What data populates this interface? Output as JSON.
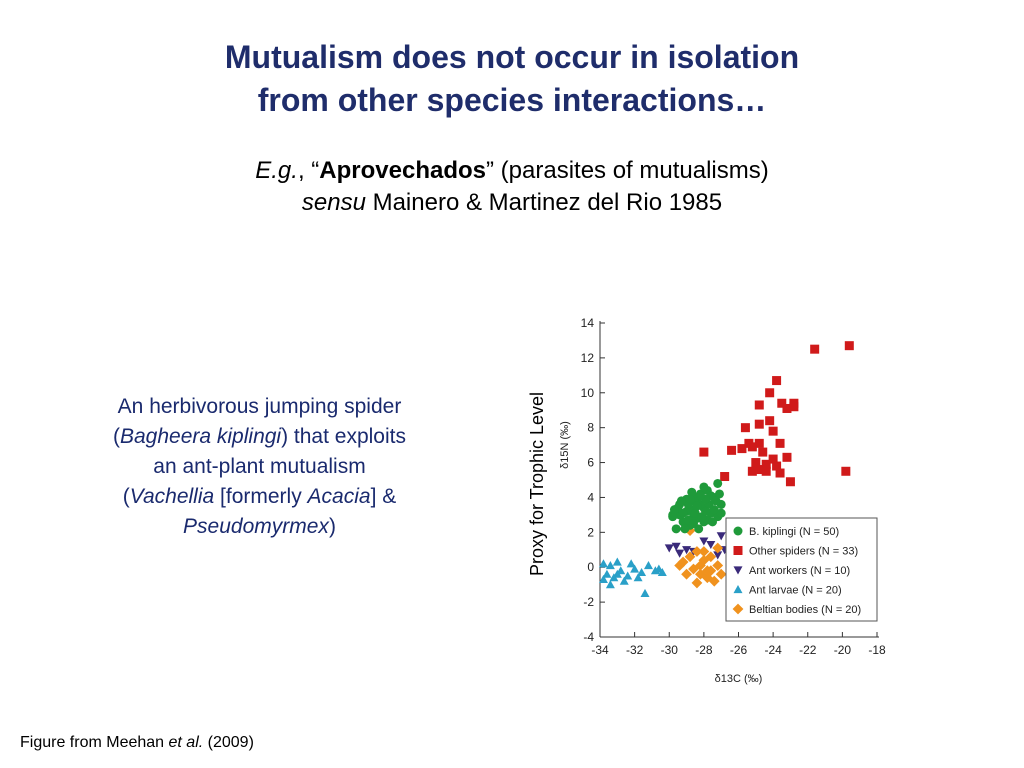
{
  "slide": {
    "title_line1": "Mutualism does not occur in isolation",
    "title_line2": "from other species interactions…",
    "sub1_eg": "E.g.",
    "sub1_sep": ", “",
    "sub1_bold": "Aprovechados",
    "sub1_rest": "” (parasites of mutualisms)",
    "sub2_italic": "sensu",
    "sub2_rest": " Mainero & Martinez del Rio 1985",
    "caption": {
      "l1": "An herbivorous jumping spider",
      "l2a": "(",
      "l2i": "Bagheera kiplingi",
      "l2b": ") that exploits",
      "l3": "an ant-plant mutualism",
      "l4a": "(",
      "l4i": "Vachellia",
      "l4b": " [formerly ",
      "l4i2": "Acacia",
      "l4c": "] &",
      "l5i": "Pseudomyrmex",
      "l5b": ")"
    },
    "footer_a": "Figure from Meehan ",
    "footer_i": "et al.",
    "footer_b": " (2009)",
    "proxy_label": "Proxy for Trophic Level"
  },
  "chart_data": {
    "type": "scatter",
    "xlabel": "δ13C (‰)",
    "ylabel": "δ15N (‰)",
    "xlim": [
      -34,
      -18
    ],
    "ylim": [
      -4,
      14
    ],
    "xticks": [
      -34,
      -32,
      -30,
      -28,
      -26,
      -24,
      -22,
      -20,
      -18
    ],
    "yticks": [
      -4,
      -2,
      0,
      2,
      4,
      6,
      8,
      10,
      12,
      14
    ],
    "legend_position": "bottom-right",
    "series": [
      {
        "name": "B. kiplingi (N = 50)",
        "marker": "circle",
        "color": "#1f9a3a",
        "points": [
          [
            -29.8,
            3.0
          ],
          [
            -29.4,
            3.6
          ],
          [
            -29.0,
            3.2
          ],
          [
            -28.6,
            3.8
          ],
          [
            -28.2,
            4.2
          ],
          [
            -27.8,
            4.4
          ],
          [
            -27.4,
            4.0
          ],
          [
            -27.0,
            3.6
          ],
          [
            -27.2,
            4.8
          ],
          [
            -28.0,
            3.4
          ],
          [
            -28.4,
            2.8
          ],
          [
            -28.8,
            2.4
          ],
          [
            -29.2,
            2.6
          ],
          [
            -29.6,
            2.2
          ],
          [
            -29.0,
            3.9
          ],
          [
            -28.4,
            4.0
          ],
          [
            -27.6,
            3.1
          ],
          [
            -27.2,
            2.9
          ],
          [
            -28.0,
            2.6
          ],
          [
            -28.8,
            3.3
          ],
          [
            -29.4,
            3.0
          ],
          [
            -28.2,
            3.6
          ],
          [
            -27.8,
            2.7
          ],
          [
            -27.6,
            4.1
          ],
          [
            -28.6,
            2.9
          ],
          [
            -29.8,
            2.9
          ],
          [
            -27.0,
            3.1
          ],
          [
            -28.0,
            4.6
          ],
          [
            -28.9,
            3.6
          ],
          [
            -29.5,
            3.4
          ],
          [
            -27.4,
            3.3
          ],
          [
            -28.3,
            2.2
          ],
          [
            -27.7,
            3.6
          ],
          [
            -28.7,
            4.3
          ],
          [
            -29.1,
            2.2
          ],
          [
            -27.3,
            3.8
          ],
          [
            -28.5,
            3.1
          ],
          [
            -29.3,
            3.8
          ],
          [
            -27.9,
            3.9
          ],
          [
            -28.1,
            2.9
          ],
          [
            -28.9,
            2.7
          ],
          [
            -27.5,
            2.6
          ],
          [
            -29.7,
            3.3
          ],
          [
            -28.4,
            3.5
          ],
          [
            -27.1,
            4.2
          ],
          [
            -28.6,
            2.5
          ],
          [
            -29.2,
            3.1
          ],
          [
            -27.9,
            3.2
          ],
          [
            -28.2,
            4.1
          ],
          [
            -28.8,
            3.9
          ]
        ]
      },
      {
        "name": "Other spiders (N = 33)",
        "marker": "square",
        "color": "#d01a1a",
        "points": [
          [
            -19.6,
            12.7
          ],
          [
            -21.6,
            12.5
          ],
          [
            -23.8,
            10.7
          ],
          [
            -24.2,
            10.0
          ],
          [
            -24.8,
            9.3
          ],
          [
            -23.5,
            9.4
          ],
          [
            -23.2,
            9.1
          ],
          [
            -22.8,
            9.4
          ],
          [
            -22.8,
            9.2
          ],
          [
            -24.2,
            8.4
          ],
          [
            -24.8,
            8.2
          ],
          [
            -25.6,
            8.0
          ],
          [
            -24.0,
            7.8
          ],
          [
            -23.6,
            7.1
          ],
          [
            -24.8,
            7.1
          ],
          [
            -25.2,
            6.9
          ],
          [
            -26.4,
            6.7
          ],
          [
            -25.8,
            6.8
          ],
          [
            -24.6,
            6.6
          ],
          [
            -28.0,
            6.6
          ],
          [
            -23.2,
            6.3
          ],
          [
            -25.0,
            6.0
          ],
          [
            -24.4,
            5.9
          ],
          [
            -23.8,
            5.8
          ],
          [
            -25.2,
            5.5
          ],
          [
            -24.4,
            5.5
          ],
          [
            -24.8,
            5.6
          ],
          [
            -23.6,
            5.4
          ],
          [
            -26.8,
            5.2
          ],
          [
            -23.0,
            4.9
          ],
          [
            -19.8,
            5.5
          ],
          [
            -25.4,
            7.1
          ],
          [
            -24.0,
            6.2
          ]
        ]
      },
      {
        "name": "Ant workers (N = 10)",
        "marker": "triangle-down",
        "color": "#3a2a7a",
        "points": [
          [
            -29.6,
            1.2
          ],
          [
            -29.0,
            1.0
          ],
          [
            -27.6,
            1.3
          ],
          [
            -27.0,
            1.8
          ],
          [
            -26.8,
            1.0
          ],
          [
            -28.6,
            0.9
          ],
          [
            -30.0,
            1.1
          ],
          [
            -28.0,
            1.5
          ],
          [
            -27.2,
            0.7
          ],
          [
            -29.4,
            0.8
          ]
        ]
      },
      {
        "name": "Ant larvae (N = 20)",
        "marker": "triangle-up",
        "color": "#2aa0c8",
        "points": [
          [
            -33.8,
            0.2
          ],
          [
            -33.4,
            0.1
          ],
          [
            -33.0,
            0.3
          ],
          [
            -33.6,
            -0.4
          ],
          [
            -33.2,
            -0.6
          ],
          [
            -32.8,
            -0.2
          ],
          [
            -32.4,
            -0.5
          ],
          [
            -32.0,
            -0.1
          ],
          [
            -31.6,
            -0.3
          ],
          [
            -31.2,
            0.1
          ],
          [
            -30.8,
            -0.2
          ],
          [
            -30.4,
            -0.3
          ],
          [
            -33.4,
            -1.0
          ],
          [
            -32.6,
            -0.8
          ],
          [
            -31.4,
            -1.5
          ],
          [
            -33.0,
            -0.4
          ],
          [
            -32.2,
            0.2
          ],
          [
            -31.8,
            -0.6
          ],
          [
            -30.6,
            -0.1
          ],
          [
            -33.8,
            -0.7
          ]
        ]
      },
      {
        "name": "Beltian bodies (N = 20)",
        "marker": "diamond",
        "color": "#f0921e",
        "points": [
          [
            -28.8,
            2.1
          ],
          [
            -28.4,
            0.9
          ],
          [
            -28.0,
            0.4
          ],
          [
            -27.6,
            0.6
          ],
          [
            -27.2,
            0.1
          ],
          [
            -27.6,
            -0.2
          ],
          [
            -28.2,
            -0.4
          ],
          [
            -28.6,
            -0.1
          ],
          [
            -29.2,
            0.3
          ],
          [
            -29.0,
            -0.4
          ],
          [
            -27.8,
            -0.6
          ],
          [
            -27.4,
            -0.8
          ],
          [
            -27.0,
            -0.4
          ],
          [
            -28.4,
            -0.9
          ],
          [
            -28.0,
            0.9
          ],
          [
            -28.8,
            0.6
          ],
          [
            -27.2,
            1.1
          ],
          [
            -29.4,
            0.1
          ],
          [
            -27.8,
            -0.2
          ],
          [
            -28.2,
            0.1
          ]
        ]
      }
    ]
  }
}
